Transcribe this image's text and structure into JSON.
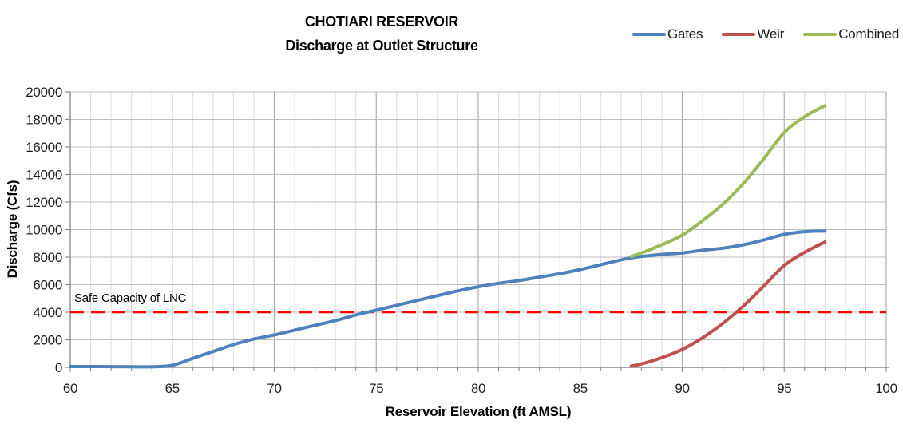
{
  "chart_data": {
    "type": "line",
    "title": "CHOTIARI RESERVOIR",
    "subtitle": "Discharge at Outlet Structure",
    "xlabel": "Reservoir Elevation (ft AMSL)",
    "ylabel": "Discharge (Cfs)",
    "xlim": [
      60,
      100
    ],
    "ylim": [
      0,
      20000
    ],
    "x_major_ticks": [
      60,
      65,
      70,
      75,
      80,
      85,
      90,
      95,
      100
    ],
    "x_minor_step": 1,
    "y_ticks": [
      0,
      2000,
      4000,
      6000,
      8000,
      10000,
      12000,
      14000,
      16000,
      18000,
      20000
    ],
    "grid": true,
    "legend_position": "top-right",
    "colors": {
      "grid_minor": "#DBDBDB",
      "grid_major": "#ADADAD",
      "grid_horizontal": "#BDBDBD",
      "axis_line": "#8C8C8C",
      "annotation": "#FF0000"
    },
    "series": [
      {
        "name": "Gates",
        "color": "#4F81BD",
        "x": [
          60,
          61,
          62,
          63,
          64,
          65,
          66,
          67,
          68,
          69,
          70,
          71,
          72,
          73,
          74,
          75,
          76,
          77,
          78,
          79,
          80,
          81,
          82,
          83,
          84,
          85,
          86,
          87,
          87.5,
          88,
          89,
          90,
          91,
          92,
          93,
          94,
          95,
          96,
          97
        ],
        "y": [
          60,
          60,
          50,
          40,
          40,
          150,
          650,
          1150,
          1650,
          2050,
          2350,
          2700,
          3050,
          3400,
          3800,
          4150,
          4500,
          4850,
          5200,
          5550,
          5850,
          6100,
          6300,
          6550,
          6800,
          7100,
          7450,
          7800,
          7950,
          8050,
          8200,
          8300,
          8500,
          8650,
          8900,
          9250,
          9650,
          9850,
          9900
        ]
      },
      {
        "name": "Weir",
        "color": "#C0504D",
        "x": [
          87.5,
          88,
          89,
          90,
          91,
          92,
          93,
          94,
          95,
          96,
          97
        ],
        "y": [
          100,
          250,
          700,
          1300,
          2150,
          3200,
          4450,
          5900,
          7400,
          8350,
          9100
        ]
      },
      {
        "name": "Combined",
        "color": "#9BBB59",
        "x": [
          87.5,
          88,
          89,
          90,
          91,
          92,
          93,
          94,
          95,
          96,
          97
        ],
        "y": [
          8050,
          8300,
          8900,
          9600,
          10650,
          11850,
          13350,
          15150,
          17050,
          18200,
          19000
        ]
      }
    ],
    "annotation": {
      "label": "Safe Capacity of LNC",
      "y": 4000,
      "style": "dashed",
      "color": "#FF0000"
    }
  }
}
